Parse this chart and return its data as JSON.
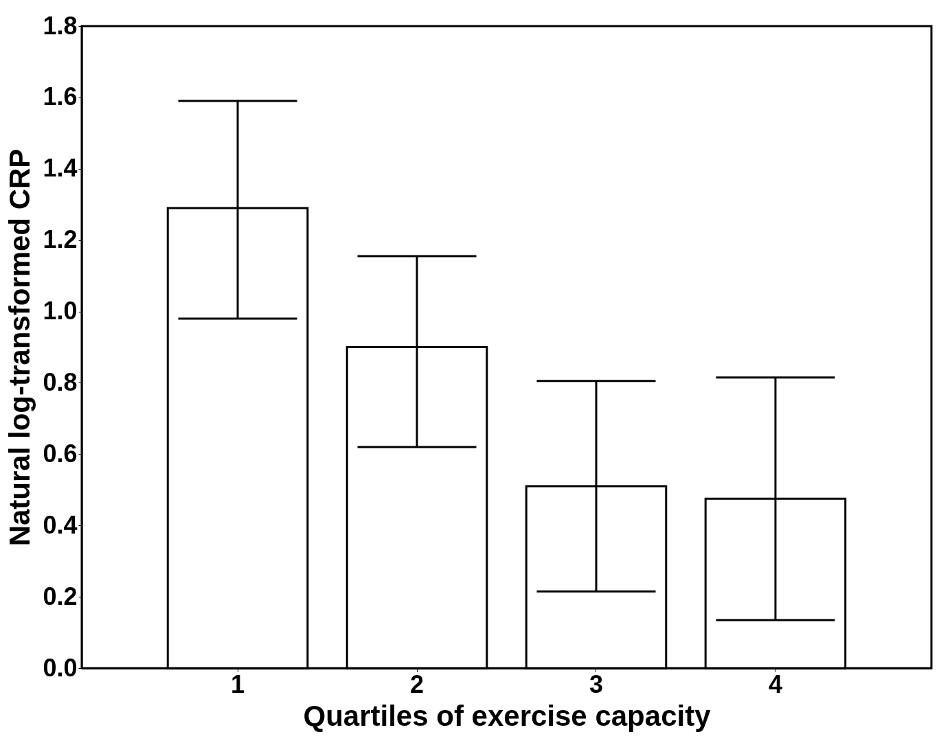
{
  "chart_data": {
    "type": "bar",
    "xlabel": "Quartiles of exercise capacity",
    "ylabel": "Natural log-transformed CRP",
    "categories": [
      "1",
      "2",
      "3",
      "4"
    ],
    "values": [
      1.29,
      0.9,
      0.51,
      0.475
    ],
    "errors": [
      [
        0.98,
        1.59
      ],
      [
        0.62,
        1.155
      ],
      [
        0.215,
        0.805
      ],
      [
        0.135,
        0.815
      ]
    ],
    "color": "#ffffff",
    "ylim": [
      0,
      1.8
    ],
    "yticks": [
      {
        "value": 0,
        "label": "0.0"
      },
      0.2,
      0.4,
      0.6,
      0.8,
      {
        "value": 1,
        "label": "1.0"
      },
      1.2,
      1.4,
      1.6,
      1.8
    ],
    "grid": false
  }
}
